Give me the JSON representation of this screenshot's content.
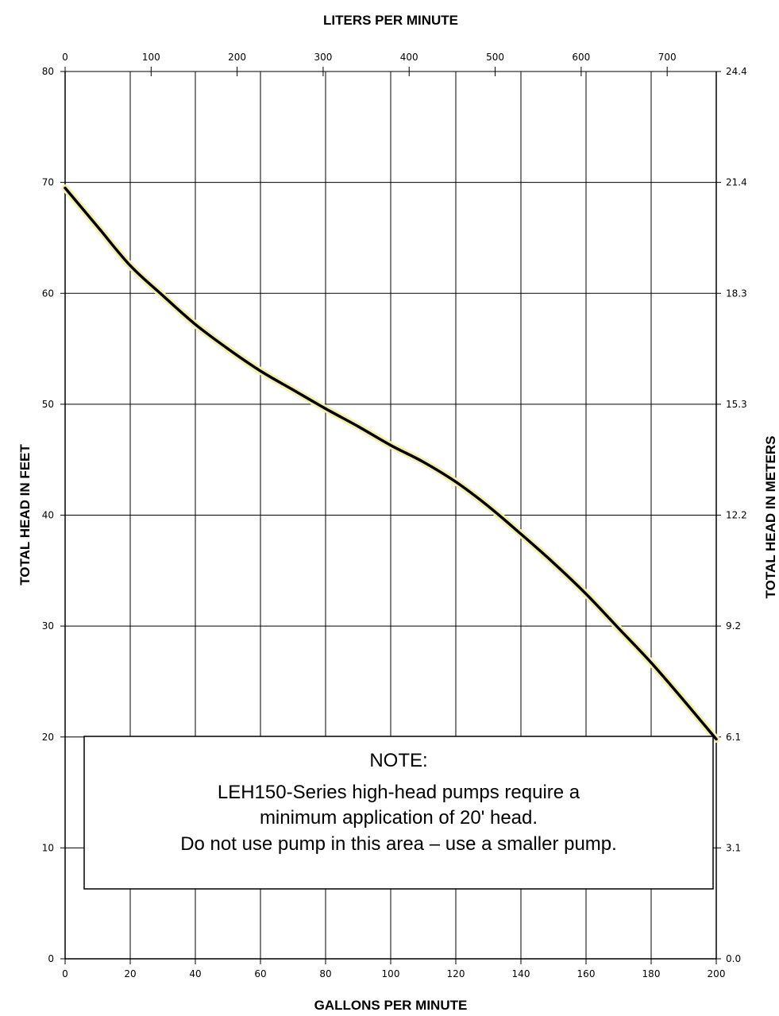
{
  "chart_data": {
    "type": "line",
    "title": "",
    "top_axis_label": "LITERS PER MINUTE",
    "bottom_axis_label": "GALLONS PER MINUTE",
    "left_axis_label": "TOTAL HEAD IN FEET",
    "right_axis_label": "TOTAL HEAD IN METERS",
    "xlim": [
      0,
      200
    ],
    "ylim": [
      0,
      80
    ],
    "top_xlim_lpm": [
      0,
      757.08
    ],
    "grid": true,
    "x_ticks": [
      "0",
      "20",
      "40",
      "60",
      "80",
      "100",
      "120",
      "140",
      "160",
      "180",
      "200"
    ],
    "y_ticks": [
      "0",
      "10",
      "20",
      "30",
      "40",
      "50",
      "60",
      "70",
      "80"
    ],
    "top_ticks": [
      "0",
      "100",
      "200",
      "300",
      "400",
      "500",
      "600",
      "700"
    ],
    "right_ticks": [
      "0.0",
      "3.1",
      "6.1",
      "9.2",
      "12.2",
      "15.3",
      "18.3",
      "21.4",
      "24.4"
    ],
    "series": [
      {
        "x": [
          0,
          10,
          20,
          30,
          40,
          50,
          60,
          70,
          80,
          90,
          100,
          110,
          120,
          130,
          140,
          150,
          160,
          170,
          180,
          190,
          200
        ],
        "y": [
          69.5,
          66.0,
          62.5,
          59.8,
          57.2,
          55.0,
          53.0,
          51.3,
          49.6,
          48.0,
          46.3,
          44.8,
          43.0,
          40.8,
          38.3,
          35.7,
          32.9,
          29.8,
          26.7,
          23.3,
          19.8
        ]
      }
    ],
    "colors": {
      "curve": "#000000",
      "curve_highlight": "#f3efb0",
      "grid": "#000000"
    },
    "annotation": {
      "heading": "NOTE:",
      "lines": [
        "LEH150-Series high-head pumps require a",
        "minimum application of 20' head.",
        "Do not use pump in this area – use a smaller pump."
      ]
    }
  }
}
